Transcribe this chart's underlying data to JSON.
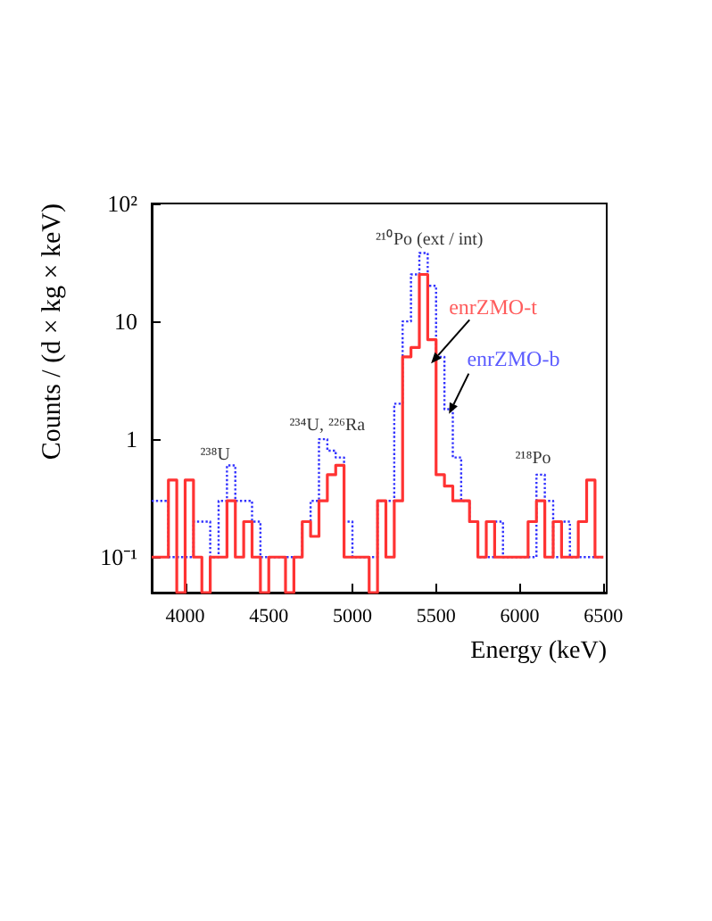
{
  "chart_data": {
    "type": "histogram",
    "xlabel": "Energy (keV)",
    "ylabel": "Counts / (d × kg × keV)",
    "bins": [
      3800,
      3850,
      3900,
      3950,
      4000,
      4050,
      4100,
      4150,
      4200,
      4250,
      4300,
      4350,
      4400,
      4450,
      4500,
      4550,
      4600,
      4650,
      4700,
      4750,
      4800,
      4850,
      4900,
      4950,
      5000,
      5050,
      5100,
      5150,
      5200,
      5250,
      5300,
      5350,
      5400,
      5450,
      5500,
      5550,
      5600,
      5650,
      5700,
      5750,
      5800,
      5850,
      5900,
      5950,
      6000,
      6050,
      6100,
      6150,
      6200,
      6250,
      6300,
      6350,
      6400,
      6450,
      6500
    ],
    "series": [
      {
        "name": "enrZMO-t",
        "color": "#ff3333",
        "line_style": "solid",
        "values": [
          0.1,
          0.1,
          0.45,
          null,
          0.45,
          0.1,
          null,
          0.1,
          0.1,
          0.3,
          0.1,
          0.2,
          0.1,
          null,
          0.1,
          0.1,
          null,
          0.1,
          0.2,
          0.15,
          0.3,
          0.5,
          0.6,
          0.1,
          0.1,
          0.1,
          null,
          0.3,
          0.1,
          0.3,
          5,
          6,
          25,
          7,
          0.5,
          0.4,
          0.3,
          0.3,
          0.2,
          0.1,
          0.2,
          0.1,
          0.1,
          0.1,
          0.1,
          0.2,
          0.3,
          0.1,
          0.2,
          0.1,
          0.1,
          0.2,
          0.45,
          0.1
        ]
      },
      {
        "name": "enrZMO-b",
        "color": "#3333ff",
        "line_style": "dotted",
        "values": [
          0.3,
          0.3,
          0.1,
          0.1,
          0.1,
          0.2,
          0.2,
          0.1,
          0.3,
          0.6,
          0.3,
          0.3,
          0.2,
          0.1,
          0.1,
          0.1,
          0.1,
          0.1,
          0.2,
          0.3,
          1.0,
          0.8,
          0.7,
          0.2,
          0.1,
          0.1,
          0.1,
          0.3,
          0.3,
          2,
          10,
          25,
          38,
          20,
          5,
          1.8,
          0.7,
          0.3,
          0.2,
          0.1,
          0.1,
          0.2,
          0.1,
          0.1,
          0.1,
          0.1,
          0.5,
          0.3,
          0.1,
          0.2,
          0.1,
          0.1,
          0.1,
          0.1
        ]
      }
    ],
    "xlim": [
      3800,
      6520
    ],
    "xticks": [
      4000,
      4500,
      5000,
      5500,
      6000,
      6500
    ],
    "ylim": [
      0.05,
      100
    ],
    "log": true,
    "yticks": [
      {
        "value": 0.1,
        "label": "10⁻¹"
      },
      1,
      10,
      {
        "value": 100,
        "label": "10²"
      }
    ],
    "grid": false,
    "legend": false,
    "annotations": [
      "²¹⁰Po (ext / int)",
      "²³⁸U",
      "²³⁴U, ²²⁶Ra",
      "²¹⁸Po"
    ]
  }
}
